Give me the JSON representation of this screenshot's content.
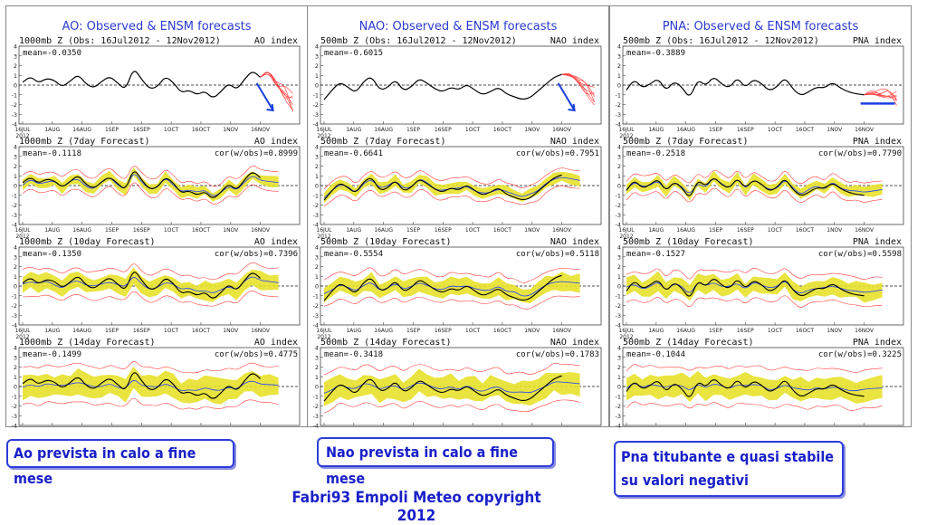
{
  "columns": [
    {
      "title": "AO: Observed & ENSM forecasts",
      "index_label": "AO index",
      "level": "1000mb Z",
      "panels": [
        {
          "header": "1000mb Z (Obs: 16Jul2012 - 12Nov2012)",
          "mean": "mean=-0.0350",
          "cor": ""
        },
        {
          "header": "1000mb Z (7day Forecast)",
          "mean": "mean=-0.1118",
          "cor": "cor(w/obs)=0.8999"
        },
        {
          "header": "1000mb Z (10day Forecast)",
          "mean": "mean=-0.1350",
          "cor": "cor(w/obs)=0.7396"
        },
        {
          "header": "1000mb Z (14day Forecast)",
          "mean": "mean=-0.1499",
          "cor": "cor(w/obs)=0.4775"
        }
      ]
    },
    {
      "title": "NAO: Observed & ENSM forecasts",
      "index_label": "NAO index",
      "level": "500mb Z",
      "panels": [
        {
          "header": "500mb Z (Obs: 16Jul2012 - 12Nov2012)",
          "mean": "mean=-0.6015",
          "cor": ""
        },
        {
          "header": "500mb Z (7day Forecast)",
          "mean": "mean=-0.6641",
          "cor": "cor(w/obs)=0.7951"
        },
        {
          "header": "500mb Z (10day Forecast)",
          "mean": "mean=-0.5554",
          "cor": "cor(w/obs)=0.5118"
        },
        {
          "header": "500mb Z (14day Forecast)",
          "mean": "mean=-0.3418",
          "cor": "cor(w/obs)=0.1783"
        }
      ]
    },
    {
      "title": "PNA: Observed & ENSM forecasts",
      "index_label": "PNA index",
      "level": "500mb Z",
      "panels": [
        {
          "header": "500mb Z (Obs: 16Jul2012 - 12Nov2012)",
          "mean": "mean=-0.3889",
          "cor": ""
        },
        {
          "header": "500mb Z (7day Forecast)",
          "mean": "mean=-0.2518",
          "cor": "cor(w/obs)=0.7790"
        },
        {
          "header": "500mb Z (10day Forecast)",
          "mean": "mean=-0.1527",
          "cor": "cor(w/obs)=0.5598"
        },
        {
          "header": "500mb Z (14day Forecast)",
          "mean": "mean=-0.1044",
          "cor": "cor(w/obs)=0.3225"
        }
      ]
    }
  ],
  "chart_data": {
    "type": "line",
    "x_ticks": [
      "16JUL\n2012",
      "1AUG",
      "16AUG",
      "1SEP",
      "16SEP",
      "1OCT",
      "16OCT",
      "1NOV",
      "16NOV"
    ],
    "y_ticks": [
      4,
      3,
      2,
      1,
      0,
      -1,
      -2,
      -3,
      -4
    ],
    "ylim": [
      -4,
      4
    ],
    "grid": false,
    "zero_line": true,
    "colors": {
      "observed": "#000000",
      "ensemble_mean": "#1f3fff",
      "spread": "#e7e12a",
      "members": "#ff3b3b",
      "arrow": "#1b3fe0"
    },
    "observed": {
      "AO": [
        0.3,
        0.9,
        0.2,
        0.7,
        0.5,
        -0.2,
        0.4,
        1.1,
        0.1,
        -0.3,
        0.4,
        0.9,
        0.2,
        -0.5,
        1.8,
        0.6,
        -0.4,
        -0.2,
        0.9,
        0.3,
        -0.8,
        -0.5,
        -1.0,
        -0.6,
        -1.4,
        -0.7,
        0.2,
        -0.5,
        0.6,
        1.5,
        0.8
      ],
      "NAO": [
        -1.5,
        -0.5,
        0.3,
        -0.2,
        -0.8,
        0.4,
        0.9,
        -0.5,
        -0.3,
        0.6,
        -0.6,
        -0.2,
        0.7,
        0.2,
        -0.4,
        -0.7,
        -0.2,
        -0.5,
        0.1,
        -0.5,
        -1.0,
        -0.7,
        -0.2,
        -0.9,
        -1.2,
        -1.5,
        -1.3,
        -0.6,
        0.1,
        0.8,
        1.1
      ],
      "PNA": [
        -0.5,
        0.6,
        -0.3,
        0.1,
        0.7,
        -0.6,
        0.4,
        -0.2,
        -1.4,
        0.6,
        -0.1,
        0.9,
        0.1,
        -0.3,
        0.8,
        -0.3,
        0.6,
        0.2,
        -0.6,
        -0.2,
        0.8,
        -0.4,
        -1.1,
        -0.7,
        -0.2,
        -0.3,
        0.3,
        -0.3,
        -0.7,
        -0.9,
        -1.0
      ]
    },
    "forecast_tail": {
      "AO": [
        1.5,
        0.3,
        -0.8,
        -2.0
      ],
      "NAO": [
        1.1,
        0.3,
        -0.5,
        -1.2
      ],
      "PNA": [
        -0.7,
        -0.9,
        -1.1,
        -1.2
      ]
    },
    "spread_halfwidth": {
      "7day": 0.5,
      "10day": 0.8,
      "14day": 1.1
    }
  },
  "captions": {
    "ao": "Ao prevista in calo a fine mese",
    "nao": "Nao prevista in calo a fine mese",
    "pna": "Pna titubante e quasi stabile su valori negativi"
  },
  "footer": "Fabri93 Empoli Meteo copyright 2012"
}
